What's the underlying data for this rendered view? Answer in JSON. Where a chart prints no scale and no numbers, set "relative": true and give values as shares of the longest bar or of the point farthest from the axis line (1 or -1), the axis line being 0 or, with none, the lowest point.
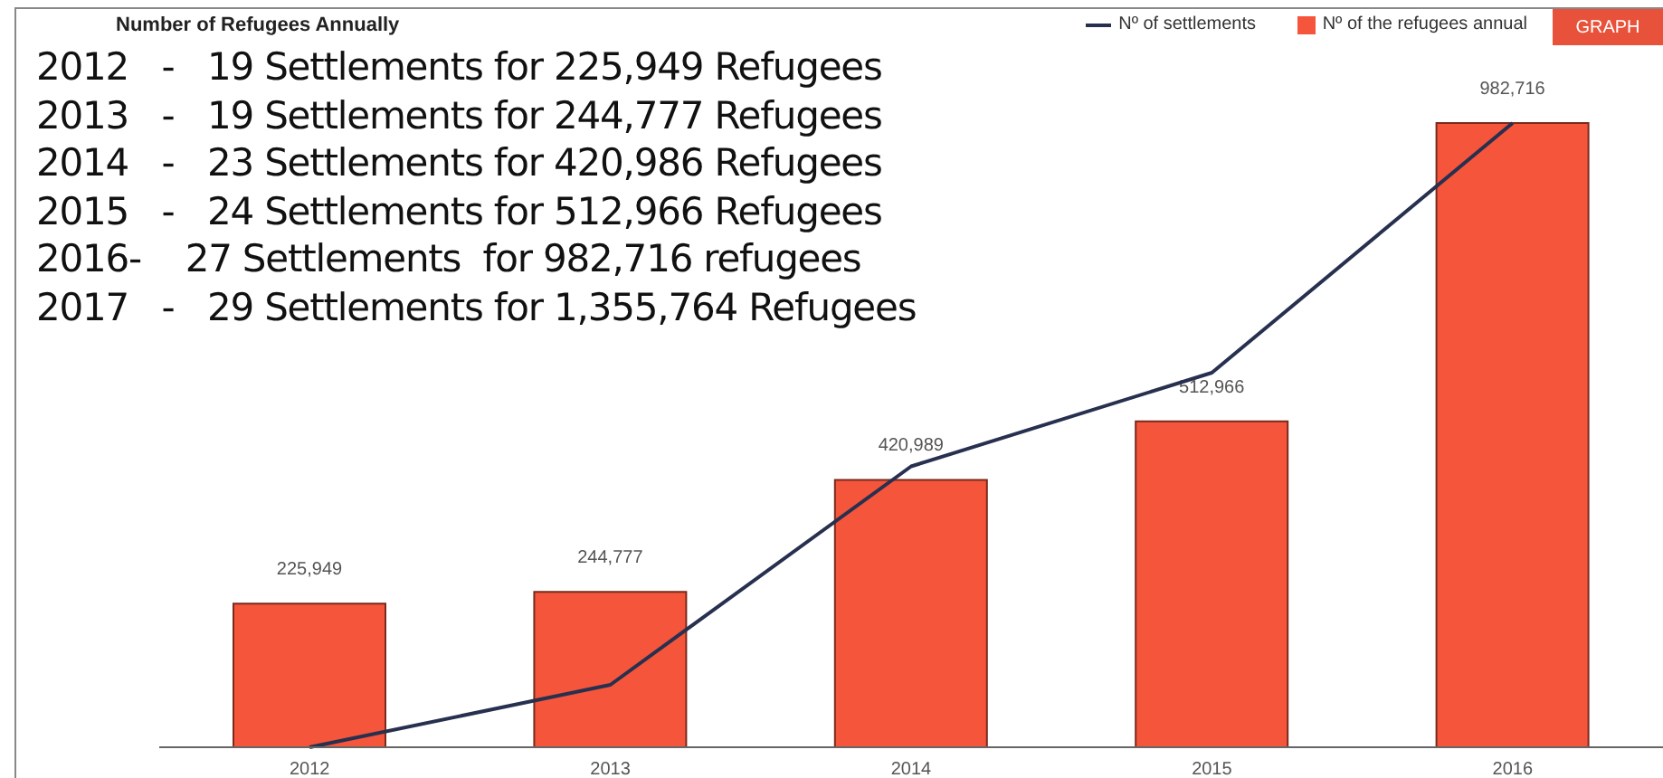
{
  "chart_data": [
    {
      "type": "bar",
      "title": "Number of Refugees Annually",
      "categories": [
        "2012",
        "2013",
        "2014",
        "2015",
        "2016"
      ],
      "series": [
        {
          "name": "Nº of the refugees annual",
          "color": "#f4553b",
          "values": [
            225949,
            244777,
            420989,
            512966,
            982716
          ],
          "value_labels": [
            "225,949",
            "244,777",
            "420,989",
            "512,966",
            "982,716"
          ]
        }
      ],
      "legend": "top right",
      "annotations": [
        "2012   -   19 Settlements for 225,949 Refugees",
        "2013   -   19 Settlements for 244,777 Refugees",
        "2014   -   23 Settlements for 420,986 Refugees",
        "2015   -   24 Settlements for 512,966 Refugees",
        "2016-    27 Settlements  for 982,716 refugees",
        "2017   -   29 Settlements for 1,355,764 Refugees",
        "GRAPH"
      ]
    },
    {
      "type": "line",
      "categories": [
        null,
        null,
        null,
        null,
        null
      ],
      "relative": true,
      "series": [
        {
          "name": "Nº of settlements",
          "color": "#27304f",
          "values": [
            0,
            0.1,
            0.45,
            0.6,
            1
          ]
        }
      ],
      "legend": "top right",
      "marker": "none",
      "line_style": "solid"
    }
  ]
}
